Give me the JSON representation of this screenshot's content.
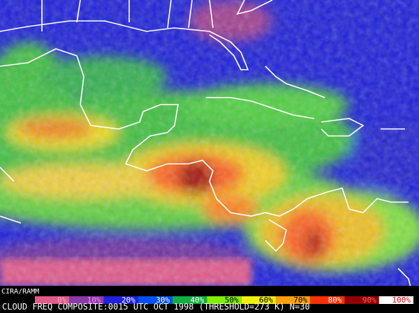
{
  "logo": "CIRA/RAMM",
  "legend": {
    "labels": [
      "0%",
      "10%",
      "20%",
      "30%",
      "40%",
      "50%",
      "60%",
      "70%",
      "80%",
      "90%",
      "100%"
    ]
  },
  "caption": "CLOUD FREQ COMPOSITE:0015 UTC OCT 1998 (THRESHOLD=273 K) N=30"
}
